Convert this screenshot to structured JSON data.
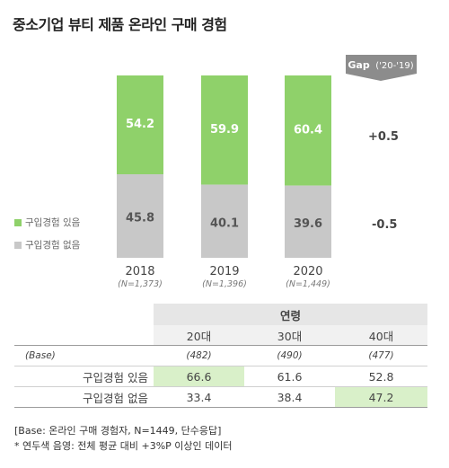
{
  "title": "중소기업 뷰티 제품 온라인 구매 경험",
  "gap_header": {
    "label": "Gap",
    "period": "('20-'19)"
  },
  "colors": {
    "yes": "#8fd16a",
    "no": "#c8c8c8",
    "badge": "#8c8c8c",
    "highlight": "#d9f0c9"
  },
  "chart_data": {
    "type": "bar",
    "stacked": true,
    "categories": [
      "2018",
      "2019",
      "2020"
    ],
    "sample_sizes": [
      "(N=1,373)",
      "(N=1,396)",
      "(N=1,449)"
    ],
    "series": [
      {
        "name": "구입경험 있음",
        "values": [
          54.2,
          59.9,
          60.4
        ]
      },
      {
        "name": "구입경험 없음",
        "values": [
          45.8,
          40.1,
          39.6
        ]
      }
    ],
    "ylim": [
      0,
      100
    ],
    "gap": [
      "+0.5",
      "-0.5"
    ],
    "legend_position": "left"
  },
  "table": {
    "group_header": "연령",
    "columns": [
      "20대",
      "30대",
      "40대"
    ],
    "base_label": "(Base)",
    "base_values": [
      "(482)",
      "(490)",
      "(477)"
    ],
    "rows": [
      {
        "label": "구입경험 있음",
        "values": [
          "66.6",
          "61.6",
          "52.8"
        ],
        "highlight": [
          0
        ]
      },
      {
        "label": "구입경험 없음",
        "values": [
          "33.4",
          "38.4",
          "47.2"
        ],
        "highlight": [
          2
        ]
      }
    ]
  },
  "footnotes": [
    "[Base: 온라인 구매 경험자, N=1449, 단수응답]",
    "* 연두색 음영: 전체 평균 대비 +3%P 이상인 데이터"
  ]
}
